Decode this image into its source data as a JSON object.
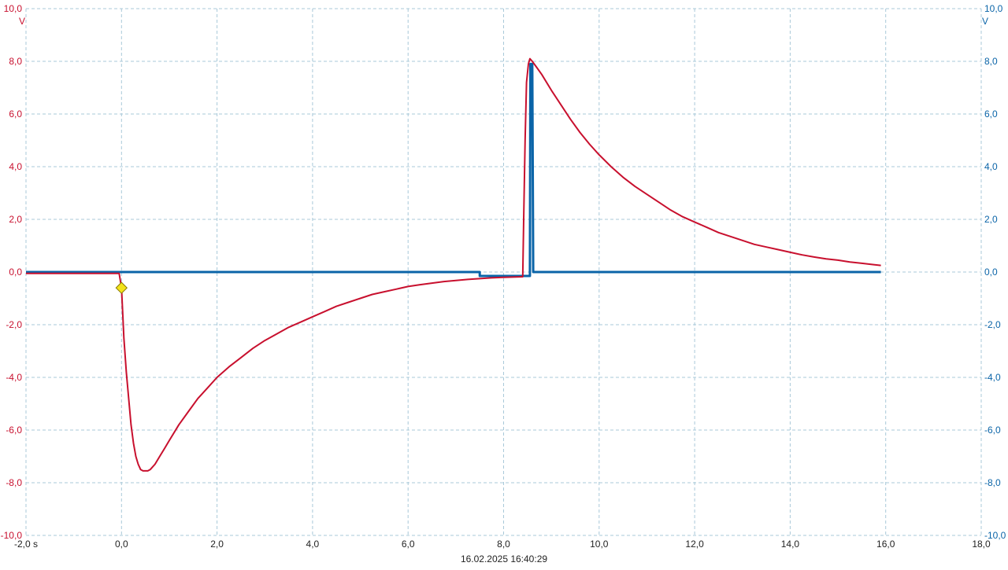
{
  "chart_data": {
    "type": "line",
    "title": "",
    "timestamp": "16.02.2025 16:40:29",
    "xlabel": "",
    "x_unit": "s",
    "xlim": [
      -2.0,
      18.0
    ],
    "x_ticks": [
      "-2,0 s",
      "0,0",
      "2,0",
      "4,0",
      "6,0",
      "8,0",
      "10,0",
      "12,0",
      "14,0",
      "16,0",
      "18,0"
    ],
    "y_left": {
      "unit": "V",
      "ylim": [
        -10.0,
        10.0
      ],
      "ticks": [
        "10,0",
        "8,0",
        "6,0",
        "4,0",
        "2,0",
        "0,0",
        "-2,0",
        "-4,0",
        "-6,0",
        "-8,0",
        "-10,0"
      ],
      "color": "#c8102e"
    },
    "y_right": {
      "unit": "V",
      "ylim": [
        -10.0,
        10.0
      ],
      "ticks": [
        "10,0",
        "8,0",
        "6,0",
        "4,0",
        "2,0",
        "0,0",
        "-2,0",
        "-4,0",
        "-6,0",
        "-8,0",
        "-10,0"
      ],
      "color": "#0a64a8"
    },
    "grid": true,
    "trigger_marker": {
      "x": 0.0,
      "y": -0.6,
      "color": "#f2e21a"
    },
    "series": [
      {
        "color": "#0a64a8",
        "points": [
          [
            -2.0,
            0.0
          ],
          [
            7.5,
            0.0
          ],
          [
            7.5,
            -0.15
          ],
          [
            8.5,
            -0.15
          ],
          [
            8.55,
            -0.15
          ],
          [
            8.56,
            7.9
          ],
          [
            8.6,
            7.9
          ],
          [
            8.62,
            0.0
          ],
          [
            15.9,
            0.0
          ]
        ]
      },
      {
        "color": "#c8102e",
        "points": [
          [
            -2.0,
            -0.05
          ],
          [
            -0.05,
            -0.05
          ],
          [
            0.0,
            -0.6
          ],
          [
            0.05,
            -2.5
          ],
          [
            0.1,
            -3.8
          ],
          [
            0.15,
            -4.8
          ],
          [
            0.2,
            -5.8
          ],
          [
            0.25,
            -6.5
          ],
          [
            0.3,
            -7.0
          ],
          [
            0.35,
            -7.3
          ],
          [
            0.4,
            -7.5
          ],
          [
            0.45,
            -7.55
          ],
          [
            0.55,
            -7.55
          ],
          [
            0.6,
            -7.5
          ],
          [
            0.7,
            -7.3
          ],
          [
            0.8,
            -7.0
          ],
          [
            0.9,
            -6.7
          ],
          [
            1.0,
            -6.4
          ],
          [
            1.2,
            -5.8
          ],
          [
            1.4,
            -5.3
          ],
          [
            1.6,
            -4.8
          ],
          [
            1.8,
            -4.4
          ],
          [
            2.0,
            -4.0
          ],
          [
            2.25,
            -3.6
          ],
          [
            2.5,
            -3.25
          ],
          [
            2.75,
            -2.9
          ],
          [
            3.0,
            -2.6
          ],
          [
            3.25,
            -2.35
          ],
          [
            3.5,
            -2.1
          ],
          [
            3.75,
            -1.9
          ],
          [
            4.0,
            -1.7
          ],
          [
            4.25,
            -1.5
          ],
          [
            4.5,
            -1.3
          ],
          [
            4.75,
            -1.15
          ],
          [
            5.0,
            -1.0
          ],
          [
            5.25,
            -0.85
          ],
          [
            5.5,
            -0.75
          ],
          [
            5.75,
            -0.65
          ],
          [
            6.0,
            -0.55
          ],
          [
            6.25,
            -0.48
          ],
          [
            6.5,
            -0.42
          ],
          [
            6.75,
            -0.36
          ],
          [
            7.0,
            -0.32
          ],
          [
            7.25,
            -0.28
          ],
          [
            7.5,
            -0.25
          ],
          [
            7.75,
            -0.22
          ],
          [
            8.0,
            -0.2
          ],
          [
            8.4,
            -0.18
          ],
          [
            8.42,
            2.0
          ],
          [
            8.45,
            5.0
          ],
          [
            8.48,
            7.2
          ],
          [
            8.52,
            7.9
          ],
          [
            8.55,
            8.1
          ],
          [
            8.6,
            8.0
          ],
          [
            8.7,
            7.75
          ],
          [
            8.8,
            7.5
          ],
          [
            9.0,
            6.9
          ],
          [
            9.2,
            6.35
          ],
          [
            9.4,
            5.8
          ],
          [
            9.6,
            5.3
          ],
          [
            9.8,
            4.85
          ],
          [
            10.0,
            4.45
          ],
          [
            10.25,
            4.0
          ],
          [
            10.5,
            3.6
          ],
          [
            10.75,
            3.25
          ],
          [
            11.0,
            2.95
          ],
          [
            11.25,
            2.65
          ],
          [
            11.5,
            2.35
          ],
          [
            11.75,
            2.1
          ],
          [
            12.0,
            1.9
          ],
          [
            12.25,
            1.7
          ],
          [
            12.5,
            1.5
          ],
          [
            12.75,
            1.35
          ],
          [
            13.0,
            1.2
          ],
          [
            13.25,
            1.05
          ],
          [
            13.5,
            0.95
          ],
          [
            13.75,
            0.85
          ],
          [
            14.0,
            0.75
          ],
          [
            14.25,
            0.65
          ],
          [
            14.5,
            0.57
          ],
          [
            14.75,
            0.5
          ],
          [
            15.0,
            0.45
          ],
          [
            15.25,
            0.38
          ],
          [
            15.5,
            0.33
          ],
          [
            15.75,
            0.28
          ],
          [
            15.9,
            0.25
          ]
        ]
      }
    ]
  }
}
